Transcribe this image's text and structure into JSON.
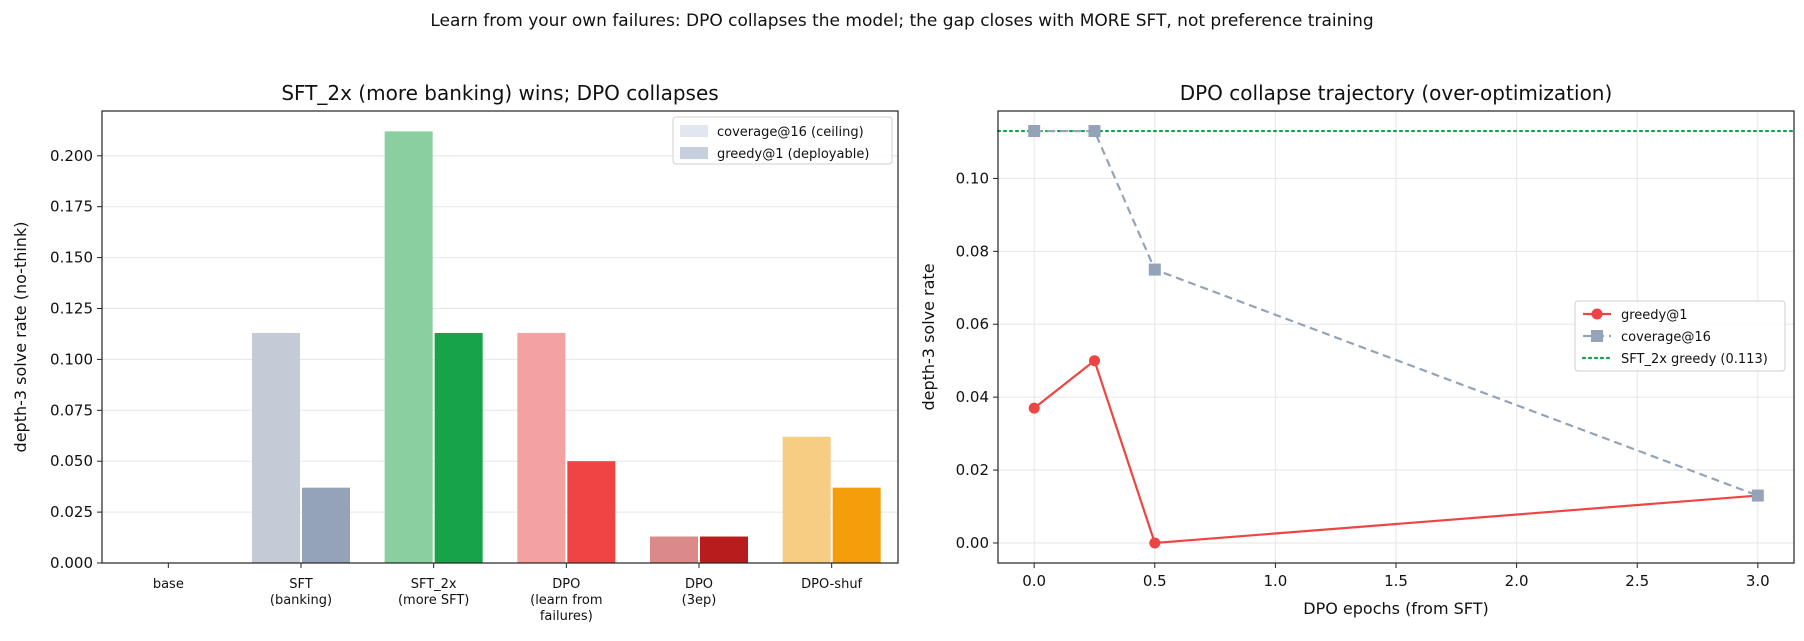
{
  "suptitle": "Learn from your own failures: DPO collapses the model; the gap closes with MORE SFT, not preference training",
  "chart_data": [
    {
      "type": "bar",
      "title": "SFT_2x (more banking) wins; DPO collapses",
      "xlabel": "",
      "ylabel": "depth-3 solve rate (no-think)",
      "ylim": [
        0,
        0.222
      ],
      "yticks": [
        "0.000",
        "0.025",
        "0.050",
        "0.075",
        "0.100",
        "0.125",
        "0.150",
        "0.175",
        "0.200"
      ],
      "grid": "y",
      "legend_position": "top-right",
      "categories": [
        [
          "base"
        ],
        [
          "SFT",
          "(banking)"
        ],
        [
          "SFT_2x",
          "(more SFT)"
        ],
        [
          "DPO",
          "(learn from",
          "failures)"
        ],
        [
          "DPO",
          "(3ep)"
        ],
        [
          "DPO-shuf"
        ]
      ],
      "series": [
        {
          "name": "coverage@16 (ceiling)",
          "legend_color": "#e2e6ee",
          "values": [
            0.0,
            0.113,
            0.212,
            0.113,
            0.013,
            0.062
          ],
          "colors": [
            "#c5cbd6",
            "#c5cbd6",
            "#89cfa0",
            "#f4a1a1",
            "#db8a8a",
            "#f7cd84"
          ]
        },
        {
          "name": "greedy@1 (deployable)",
          "legend_color": "#c5cfdd",
          "values": [
            0.0,
            0.037,
            0.113,
            0.05,
            0.013,
            0.037
          ],
          "colors": [
            "#94a3b8",
            "#94a3b8",
            "#16a34a",
            "#ef4444",
            "#b91c1c",
            "#f59e0b"
          ]
        }
      ]
    },
    {
      "type": "line",
      "title": "DPO collapse trajectory (over-optimization)",
      "xlabel": "DPO epochs (from SFT)",
      "ylabel": "depth-3 solve rate",
      "xlim": [
        -0.15,
        3.15
      ],
      "ylim": [
        -0.0055,
        0.1185
      ],
      "xticks": [
        "0.0",
        "0.5",
        "1.0",
        "1.5",
        "2.0",
        "2.5",
        "3.0"
      ],
      "yticks": [
        "0.00",
        "0.02",
        "0.04",
        "0.06",
        "0.08",
        "0.10"
      ],
      "grid": "both",
      "legend_position": "center-right",
      "x": [
        0,
        0.25,
        0.5,
        3.0
      ],
      "series": [
        {
          "name": "greedy@1",
          "values": [
            0.037,
            0.05,
            0.0,
            0.013
          ],
          "color": "#ef4444",
          "marker": "circle",
          "linestyle": "solid"
        },
        {
          "name": "coverage@16",
          "values": [
            0.113,
            0.113,
            0.075,
            0.013
          ],
          "color": "#94a3b8",
          "marker": "square",
          "linestyle": "dashed"
        }
      ],
      "reference_line": {
        "name": "SFT_2x greedy (0.113)",
        "value": 0.113,
        "color": "#16a34a",
        "linestyle": "dotted"
      }
    }
  ]
}
